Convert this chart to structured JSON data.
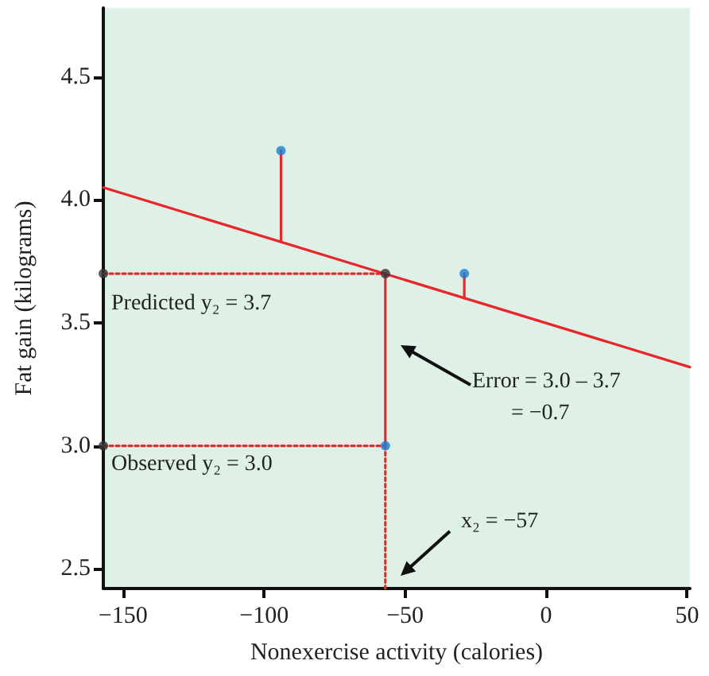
{
  "chart_data": {
    "type": "scatter",
    "xlabel": "Nonexercise activity (calories)",
    "ylabel": "Fat gain (kilograms)",
    "xlim": [
      -157,
      51
    ],
    "xticks": [
      {
        "value": -150,
        "label": "−150"
      },
      {
        "value": -100,
        "label": "−100"
      },
      {
        "value": -50,
        "label": "−50"
      },
      0,
      50
    ],
    "ylim": [
      2.42,
      4.78
    ],
    "yticks": [
      2.5,
      {
        "value": 3.0,
        "label": "3.0"
      },
      3.5,
      {
        "value": 4.0,
        "label": "4.0"
      },
      4.5
    ],
    "grid": false,
    "series": [
      {
        "type": "line",
        "color": "#e8262b",
        "marker": "none",
        "line_style": "solid",
        "x": [
          -157,
          51
        ],
        "values": [
          4.05,
          3.32
        ]
      },
      {
        "type": "line",
        "color": "#e8262b",
        "marker": "none",
        "line_style": "solid",
        "x": [
          -94,
          -94
        ],
        "values": [
          4.2,
          3.83
        ]
      },
      {
        "type": "line",
        "color": "#e8262b",
        "marker": "none",
        "line_style": "solid",
        "x": [
          -57,
          -57
        ],
        "values": [
          3.0,
          3.7
        ]
      },
      {
        "type": "line",
        "color": "#e8262b",
        "marker": "none",
        "line_style": "solid",
        "x": [
          -29,
          -29
        ],
        "values": [
          3.7,
          3.6
        ]
      },
      {
        "type": "line",
        "color": "#e8262b",
        "marker": "none",
        "line_style": "dotted",
        "x": [
          -157,
          -57
        ],
        "values": [
          3.7,
          3.7
        ]
      },
      {
        "type": "line",
        "color": "#e8262b",
        "marker": "none",
        "line_style": "dotted",
        "x": [
          -157,
          -57
        ],
        "values": [
          3.0,
          3.0
        ]
      },
      {
        "type": "line",
        "color": "#e8262b",
        "marker": "none",
        "line_style": "dotted",
        "x": [
          -57,
          -57
        ],
        "values": [
          3.0,
          2.42
        ]
      },
      {
        "type": "scatter",
        "color": "#333333",
        "marker": "circle",
        "x": [
          -157,
          -157,
          -57
        ],
        "values": [
          3.7,
          3.0,
          3.7
        ]
      },
      {
        "type": "scatter",
        "color": "#1b7fd0",
        "marker": "circle",
        "x": [
          -94,
          -57,
          -29
        ],
        "values": [
          4.2,
          3.0,
          3.7
        ]
      }
    ],
    "annotations": [
      "Predicted y₂ = 3.7",
      "Observed y₂ = 3.0",
      "Error = 3.0 – 3.7\n       = −0.7",
      "x₂ = −57"
    ]
  }
}
